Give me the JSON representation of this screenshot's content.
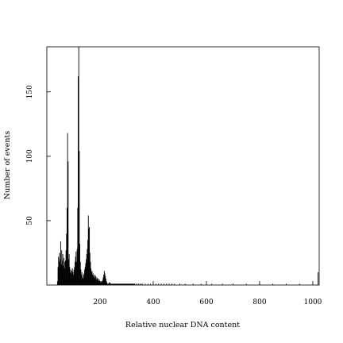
{
  "chart_data": {
    "type": "bar",
    "xlabel": "Relative nuclear DNA content",
    "ylabel": "Number of events",
    "xlim": [
      0,
      1024
    ],
    "ylim": [
      0,
      185
    ],
    "xticks": [
      200,
      400,
      600,
      800,
      1000
    ],
    "yticks": [
      50,
      100,
      150
    ],
    "xtick_labels": [
      "200",
      "400",
      "600",
      "800",
      "1000"
    ],
    "ytick_labels": [
      "50",
      "100",
      "150"
    ],
    "grid": false,
    "legend": "none",
    "bar_color": "#000000",
    "x": [
      40,
      42,
      44,
      46,
      48,
      50,
      52,
      54,
      56,
      58,
      60,
      62,
      64,
      66,
      68,
      70,
      72,
      74,
      76,
      78,
      80,
      82,
      84,
      86,
      88,
      90,
      92,
      94,
      96,
      98,
      100,
      102,
      104,
      106,
      108,
      110,
      112,
      114,
      116,
      118,
      120,
      122,
      124,
      126,
      128,
      130,
      132,
      134,
      136,
      138,
      140,
      142,
      144,
      146,
      148,
      150,
      152,
      154,
      156,
      158,
      160,
      162,
      164,
      166,
      168,
      170,
      172,
      174,
      176,
      178,
      180,
      182,
      184,
      186,
      188,
      190,
      192,
      194,
      196,
      198,
      200,
      202,
      204,
      206,
      208,
      210,
      212,
      214,
      216,
      218,
      220,
      222,
      224,
      226,
      228,
      230,
      232,
      234,
      236,
      238,
      240,
      242,
      244,
      246,
      248,
      250,
      252,
      254,
      256,
      258,
      260,
      262,
      264,
      266,
      268,
      270,
      272,
      274,
      276,
      278,
      280,
      282,
      284,
      286,
      288,
      290,
      292,
      294,
      296,
      298,
      300,
      302,
      304,
      306,
      308,
      310,
      312,
      314,
      316,
      318,
      320,
      322,
      324,
      326,
      328,
      330,
      335,
      340,
      345,
      350,
      355,
      360,
      370,
      380,
      390,
      400,
      410,
      420,
      430,
      440,
      450,
      460,
      470,
      480,
      500,
      520,
      550,
      580,
      620,
      660,
      700,
      750,
      800,
      850,
      900,
      950,
      1000,
      1020
    ],
    "values": [
      3,
      14,
      22,
      18,
      25,
      20,
      34,
      16,
      27,
      19,
      24,
      15,
      21,
      13,
      18,
      19,
      27,
      40,
      60,
      118,
      96,
      20,
      24,
      14,
      10,
      12,
      9,
      11,
      13,
      10,
      8,
      12,
      14,
      18,
      22,
      26,
      18,
      28,
      60,
      162,
      185,
      104,
      32,
      18,
      12,
      8,
      10,
      6,
      5,
      8,
      9,
      12,
      14,
      17,
      20,
      24,
      28,
      35,
      54,
      44,
      45,
      25,
      18,
      13,
      10,
      11,
      8,
      9,
      7,
      6,
      8,
      5,
      7,
      4,
      6,
      5,
      4,
      5,
      3,
      4,
      3,
      2,
      3,
      2,
      3,
      4,
      6,
      8,
      11,
      9,
      7,
      5,
      3,
      2,
      1,
      1,
      1,
      2,
      1,
      2,
      1,
      1,
      1,
      1,
      1,
      1,
      1,
      1,
      1,
      1,
      1,
      1,
      1,
      1,
      1,
      1,
      1,
      1,
      1,
      1,
      1,
      1,
      1,
      1,
      1,
      1,
      1,
      1,
      1,
      1,
      1,
      1,
      1,
      1,
      1,
      1,
      1,
      1,
      1,
      1,
      1,
      1,
      1,
      1,
      1,
      1,
      1,
      1,
      1,
      1,
      1,
      1,
      1,
      1,
      1,
      1,
      1,
      1,
      1,
      1,
      1,
      1,
      1,
      1,
      1,
      1,
      1,
      1,
      1,
      1,
      1,
      1,
      1,
      1,
      1,
      1,
      1,
      10
    ]
  }
}
